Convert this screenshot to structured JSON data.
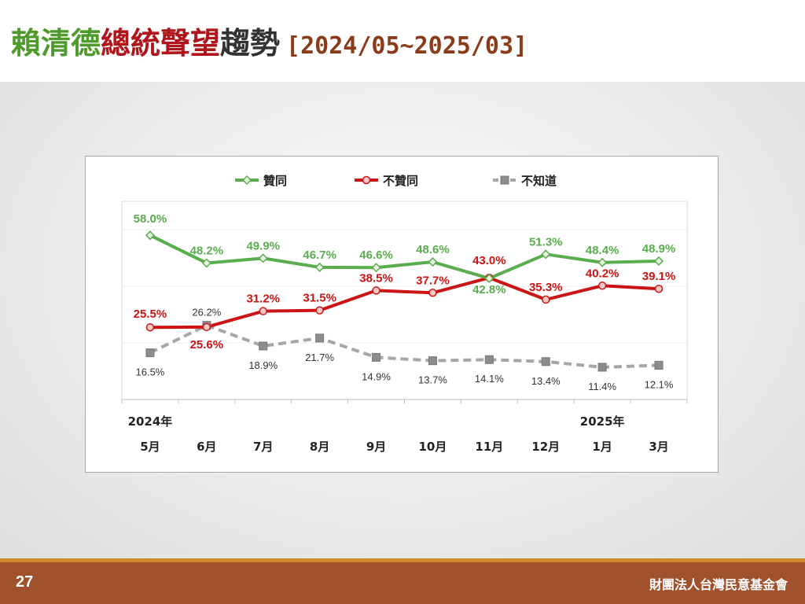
{
  "title": {
    "part1": "賴清德",
    "part2": "總統聲望",
    "part3": "趨勢",
    "date_range": "[2024/05~2025/03]",
    "colors": {
      "part1": "#4f9a2c",
      "part2": "#b0151b",
      "part3": "#333333",
      "date_range": "#8a3c1a"
    }
  },
  "chart_data": {
    "type": "line",
    "categories": [
      "5月",
      "6月",
      "7月",
      "8月",
      "9月",
      "10月",
      "11月",
      "12月",
      "1月",
      "3月"
    ],
    "year_labels": [
      {
        "label": "2024年",
        "category_index": 0
      },
      {
        "label": "2025年",
        "category_index": 8
      }
    ],
    "series": [
      {
        "name": "贊同",
        "color": "#5aad4e",
        "marker": "diamond",
        "dashed": false,
        "values": [
          58.0,
          48.2,
          49.9,
          46.7,
          46.6,
          48.6,
          42.8,
          51.3,
          48.4,
          48.9
        ],
        "labels": [
          "58.0%",
          "48.2%",
          "49.9%",
          "46.7%",
          "46.6%",
          "48.6%",
          "42.8%",
          "51.3%",
          "48.4%",
          "48.9%"
        ]
      },
      {
        "name": "不贊同",
        "color": "#cc1414",
        "marker": "circle",
        "dashed": false,
        "values": [
          25.5,
          25.6,
          31.2,
          31.5,
          38.5,
          37.7,
          43.0,
          35.3,
          40.2,
          39.1
        ],
        "labels": [
          "25.5%",
          "25.6%",
          "31.2%",
          "31.5%",
          "38.5%",
          "37.7%",
          "43.0%",
          "35.3%",
          "40.2%",
          "39.1%"
        ]
      },
      {
        "name": "不知道",
        "color": "#a6a6a6",
        "marker": "square",
        "dashed": true,
        "values": [
          16.5,
          26.2,
          18.9,
          21.7,
          14.9,
          13.7,
          14.1,
          13.4,
          11.4,
          12.1
        ],
        "labels": [
          "16.5%",
          "26.2%",
          "18.9%",
          "21.7%",
          "14.9%",
          "13.7%",
          "14.1%",
          "13.4%",
          "11.4%",
          "12.1%"
        ]
      }
    ],
    "ylim": [
      0,
      70
    ],
    "gridlines": [
      20,
      40,
      60
    ],
    "legend_position": "top"
  },
  "footer": {
    "page_number": "27",
    "organization": "財團法人台灣民意基金會"
  }
}
